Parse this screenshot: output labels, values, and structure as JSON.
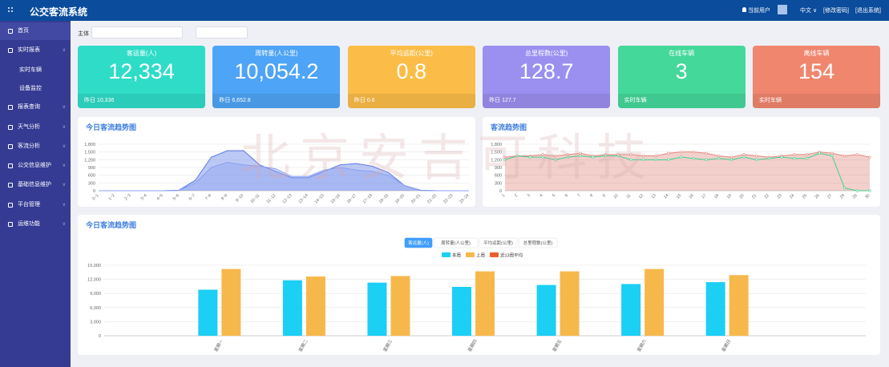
{
  "header": {
    "title": "公交客流系统",
    "user": "当前用户",
    "language": "中文",
    "links": [
      "[修改密码]",
      "[退出系统]"
    ]
  },
  "sidebar": {
    "items": [
      {
        "label": "首页"
      },
      {
        "label": "实时报表",
        "children": [
          "实时车辆",
          "设备监控"
        ]
      },
      {
        "label": "报表查询"
      },
      {
        "label": "天气分析"
      },
      {
        "label": "客流分析"
      },
      {
        "label": "公交信息维护"
      },
      {
        "label": "基础信息维护"
      },
      {
        "label": "平台管理"
      },
      {
        "label": "运维功能"
      }
    ]
  },
  "filter": {
    "label": "主体"
  },
  "cards": [
    {
      "title": "客运量(人)",
      "value": "12,334",
      "footer": "昨日 10,336",
      "color": "#2fdcc8"
    },
    {
      "title": "周转量(人公里)",
      "value": "10,054.2",
      "footer": "昨日 6,652.8",
      "color": "#4ea4f6"
    },
    {
      "title": "平均运距(公里)",
      "value": "0.8",
      "footer": "昨日 0.6",
      "color": "#fbbd47"
    },
    {
      "title": "总里程数(公里)",
      "value": "128.7",
      "footer": "昨日 127.7",
      "color": "#9b8ff0"
    },
    {
      "title": "在线车辆",
      "value": "3",
      "footer": "实时车辆",
      "color": "#44d89a"
    },
    {
      "title": "离线车辆",
      "value": "154",
      "footer": "实时车辆",
      "color": "#f0866e"
    }
  ],
  "watermark": "北京安吉可科技",
  "charts": [
    {
      "type": "area",
      "title": "今日客流趋势图",
      "categories": [
        "0~1",
        "1~2",
        "2~3",
        "3~4",
        "4~5",
        "5~6",
        "6~7",
        "7~8",
        "8~9",
        "9~10",
        "10~11",
        "11~12",
        "12~13",
        "13~14",
        "14~15",
        "15~16",
        "16~17",
        "17~18",
        "18~19",
        "19~20",
        "20~21",
        "21~22",
        "22~23",
        "23~24"
      ],
      "ylim": [
        0,
        1800
      ],
      "yticks": [
        0,
        300,
        600,
        900,
        {
          "value": 1200,
          "label": "1,200"
        },
        {
          "value": 1500,
          "label": "1,500"
        },
        {
          "value": 1800,
          "label": "1,800"
        }
      ],
      "series": [
        {
          "color": "#5b78e6",
          "area": true,
          "values": [
            0,
            0,
            0,
            0,
            0,
            20,
            400,
            1300,
            1550,
            1550,
            1000,
            750,
            500,
            500,
            750,
            1000,
            1050,
            950,
            700,
            200,
            20,
            0,
            0,
            0
          ]
        },
        {
          "color": "#8aa0f0",
          "area": true,
          "values": [
            0,
            0,
            0,
            0,
            0,
            10,
            300,
            900,
            1100,
            1000,
            950,
            850,
            550,
            550,
            800,
            900,
            800,
            750,
            600,
            200,
            10,
            0,
            0,
            0
          ]
        }
      ]
    },
    {
      "type": "area",
      "title": "客流趋势图",
      "categories": [
        "1",
        "2",
        "3",
        "4",
        "5",
        "6",
        "7",
        "8",
        "9",
        "10",
        "11",
        "12",
        "13",
        "14",
        "15",
        "16",
        "17",
        "18",
        "19",
        "20",
        "21",
        "22",
        "23",
        "24",
        "25",
        "26",
        "27",
        "28",
        "29",
        "30"
      ],
      "ylim": [
        0,
        1800
      ],
      "yticks": [
        0,
        300,
        600,
        900,
        {
          "value": 1200,
          "label": "1,200"
        },
        {
          "value": 1500,
          "label": "1,500"
        },
        {
          "value": 1800,
          "label": "1,800"
        }
      ],
      "series": [
        {
          "color": "#e08a80",
          "area": true,
          "values": [
            1300,
            1350,
            1350,
            1400,
            1350,
            1400,
            1450,
            1350,
            1400,
            1400,
            1400,
            1350,
            1350,
            1450,
            1500,
            1500,
            1450,
            1350,
            1300,
            1400,
            1350,
            1300,
            1350,
            1400,
            1400,
            1500,
            1450,
            1350,
            1400,
            1300
          ]
        },
        {
          "color": "#3fcf8e",
          "area": false,
          "values": [
            1200,
            1350,
            1300,
            1300,
            1200,
            1300,
            1350,
            1300,
            1350,
            1350,
            1200,
            1200,
            1200,
            1200,
            1300,
            1250,
            1200,
            1250,
            1200,
            1300,
            1200,
            1250,
            1300,
            1250,
            1250,
            1450,
            1350,
            100,
            0,
            0
          ]
        }
      ]
    },
    {
      "type": "bar",
      "title": "今日客流趋势图",
      "tabs": [
        "客运量(人)",
        "周转量(人公里)",
        "平均运距(公里)",
        "总里程数(公里)"
      ],
      "active_tab": 0,
      "categories": [
        null,
        "星期一",
        "星期二",
        "星期三",
        "星期四",
        "星期五",
        "星期六",
        "星期日",
        null
      ],
      "ylim": [
        0,
        15000
      ],
      "yticks": [
        0,
        {
          "value": 3000,
          "label": "3,000"
        },
        {
          "value": 6000,
          "label": "6,000"
        },
        {
          "value": 9000,
          "label": "9,000"
        },
        {
          "value": 12000,
          "label": "12,000"
        },
        {
          "value": 15000,
          "label": "15,000"
        }
      ],
      "series": [
        {
          "name": "本周",
          "color": "#1ccff5",
          "values": [
            null,
            9800,
            11800,
            11300,
            10400,
            10800,
            11000,
            11400,
            null
          ]
        },
        {
          "name": "上周",
          "color": "#f7b84b",
          "values": [
            null,
            14200,
            12600,
            12700,
            13700,
            13700,
            14200,
            12900,
            null
          ]
        },
        {
          "name": "近13周平均",
          "color": "#e8612c",
          "values": [
            null,
            null,
            null,
            null,
            null,
            null,
            null,
            null,
            null
          ]
        }
      ]
    }
  ]
}
